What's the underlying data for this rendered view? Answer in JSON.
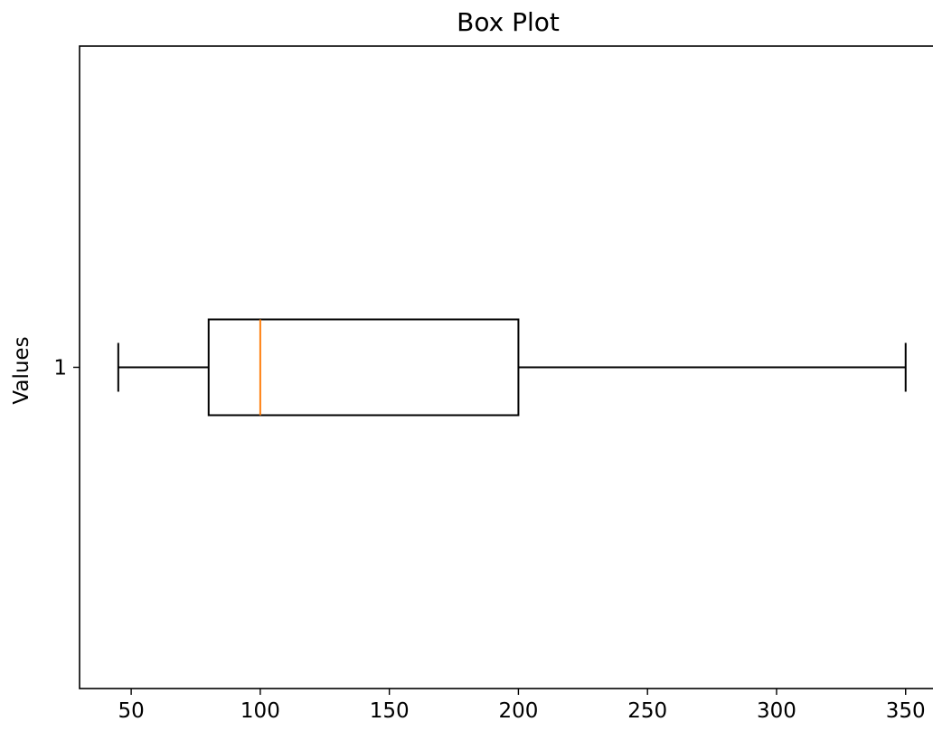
{
  "chart_data": {
    "type": "box",
    "orientation": "horizontal",
    "title": "Box Plot",
    "xlabel": "",
    "ylabel": "Values",
    "xlim": [
      30,
      362
    ],
    "xticks": [
      50,
      100,
      150,
      200,
      250,
      300,
      350
    ],
    "y_tick_labels": [
      "1"
    ],
    "grid": false,
    "series": [
      {
        "category": "1",
        "whisker_low": 45,
        "q1": 80,
        "median": 100,
        "q3": 200,
        "whisker_high": 350
      }
    ],
    "colors": {
      "box": "#000000",
      "median": "#ff7f0e",
      "frame": "#000000"
    }
  }
}
